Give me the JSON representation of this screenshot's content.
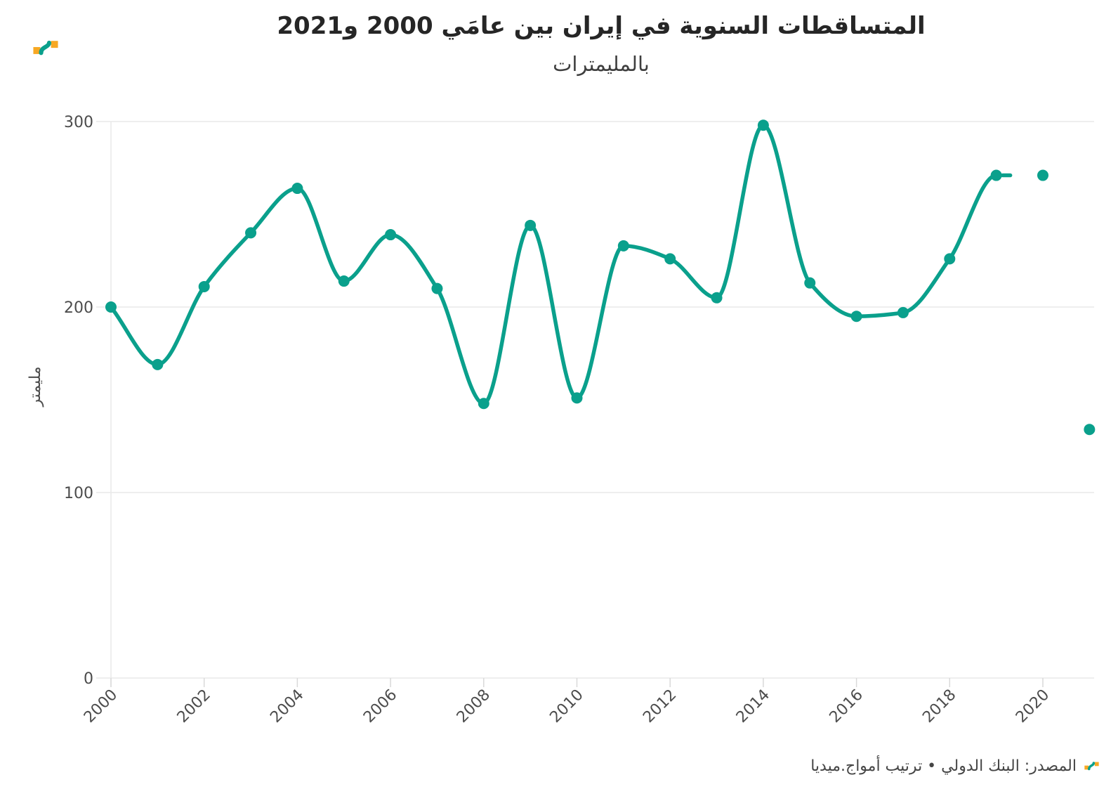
{
  "header": {
    "title": "المتساقطات السنوية في إيران بين عامَي 2000 و2021",
    "subtitle": "بالمليمترات"
  },
  "footer": {
    "source": "المصدر: البنك الدولي • ترتيب أمواج.ميديا"
  },
  "logo": {
    "orange": "#f7a823",
    "teal": "#0aa08c"
  },
  "colors": {
    "line": "#0aa08c",
    "grid": "#e9e9e9",
    "tick": "#d9d9d9",
    "axis_text": "#4c4c4c"
  },
  "chart_data": {
    "type": "line",
    "title": "المتساقطات السنوية في إيران بين عامَي 2000 و2021",
    "subtitle": "بالمليمترات",
    "ylabel": "مليمتر",
    "xlabel": "",
    "x": [
      2000,
      2001,
      2002,
      2003,
      2004,
      2005,
      2006,
      2007,
      2008,
      2009,
      2010,
      2011,
      2012,
      2013,
      2014,
      2015,
      2016,
      2017,
      2018,
      2019,
      2020,
      2021
    ],
    "values": [
      200,
      169,
      211,
      240,
      264,
      214,
      239,
      210,
      148,
      244,
      151,
      233,
      226,
      205,
      298,
      213,
      195,
      197,
      226,
      271,
      271,
      134
    ],
    "line_ends_at": 2019,
    "detached_points": [
      2020,
      2021
    ],
    "yticks": [
      0,
      100,
      200,
      300
    ],
    "xticks": [
      2000,
      2002,
      2004,
      2006,
      2008,
      2010,
      2012,
      2014,
      2016,
      2018,
      2020
    ],
    "ylim": [
      0,
      310
    ],
    "xlim": [
      2000,
      2021
    ],
    "grid": "horizontal",
    "legend_position": "none",
    "line_color": "#0aa08c"
  }
}
